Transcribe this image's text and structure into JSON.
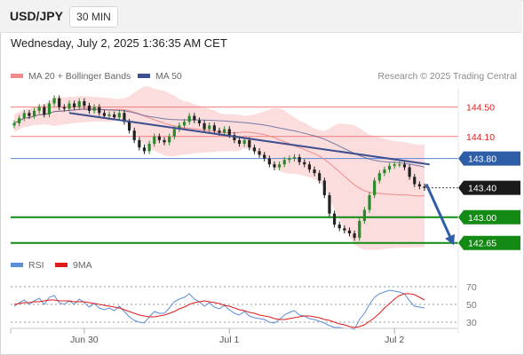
{
  "header": {
    "symbol": "USD/JPY",
    "interval": "30 MIN"
  },
  "timestamp": "Wednesday, July 2, 2025 1:36:35 AM CET",
  "legend": {
    "ma20": {
      "label": "MA 20 + Bollinger Bands",
      "color": "#f08b8b"
    },
    "ma50": {
      "label": "MA 50",
      "color": "#3c4f8f"
    }
  },
  "credit": "Research © 2025 Trading Central",
  "rsi_legend": {
    "rsi": {
      "label": "RSI",
      "color": "#5b8ed6"
    },
    "ma": {
      "label": "9MA",
      "color": "#e01b1b"
    }
  },
  "chart_data": [
    {
      "type": "candlestick",
      "name": "price",
      "ylim": [
        142.55,
        144.75
      ],
      "x_ticks": [
        "Jun 30",
        "Jul 1",
        "Jul 2"
      ],
      "levels": [
        {
          "value": 144.5,
          "label": "144.50",
          "kind": "resistance"
        },
        {
          "value": 144.1,
          "label": "144.10",
          "kind": "resistance"
        },
        {
          "value": 143.8,
          "label": "143.80",
          "kind": "pivot"
        },
        {
          "value": 143.4,
          "label": "143.40",
          "kind": "last_price"
        },
        {
          "value": 143.0,
          "label": "143.00",
          "kind": "support"
        },
        {
          "value": 142.65,
          "label": "142.65",
          "kind": "support"
        }
      ],
      "colors": {
        "resistance": "#ef7c7c",
        "pivot": "#5a86d6",
        "support": "#138a13",
        "last_price": "#1e1e1e",
        "up": "#2a8a2a",
        "down": "#222222",
        "band": "#fbd2d2",
        "ma20": "#f08b8b",
        "ma50": "#3c4f8f",
        "trendline": "#3c4f8f",
        "arrow": "#2f5ea8"
      },
      "trendline": [
        [
          144.42,
          11
        ],
        [
          143.72,
          83
        ]
      ],
      "projection": [
        143.45,
        142.65
      ],
      "closes": [
        144.28,
        144.35,
        144.42,
        144.38,
        144.45,
        144.5,
        144.4,
        144.55,
        144.62,
        144.5,
        144.48,
        144.55,
        144.5,
        144.58,
        144.52,
        144.45,
        144.5,
        144.42,
        144.38,
        144.4,
        144.36,
        144.42,
        144.3,
        144.18,
        144.05,
        143.95,
        143.9,
        144.0,
        144.1,
        144.05,
        144.02,
        144.1,
        144.2,
        144.25,
        144.3,
        144.38,
        144.32,
        144.28,
        144.2,
        144.25,
        144.18,
        144.15,
        144.2,
        144.12,
        144.05,
        144.0,
        144.05,
        143.95,
        143.9,
        143.85,
        143.8,
        143.72,
        143.68,
        143.72,
        143.78,
        143.8,
        143.82,
        143.75,
        143.72,
        143.65,
        143.6,
        143.5,
        143.3,
        143.05,
        142.9,
        142.85,
        142.82,
        142.78,
        142.72,
        142.95,
        143.1,
        143.3,
        143.5,
        143.6,
        143.65,
        143.7,
        143.72,
        143.72,
        143.68,
        143.55,
        143.45,
        143.42,
        143.4
      ],
      "rsi": {
        "ylim": [
          25,
          75
        ],
        "ticks": [
          70,
          50,
          30
        ],
        "rsi": [
          48,
          52,
          55,
          50,
          54,
          57,
          50,
          58,
          60,
          52,
          50,
          54,
          50,
          56,
          52,
          47,
          51,
          46,
          44,
          46,
          43,
          48,
          42,
          36,
          32,
          30,
          29,
          36,
          42,
          40,
          40,
          46,
          53,
          56,
          58,
          62,
          56,
          53,
          48,
          52,
          47,
          45,
          49,
          44,
          40,
          38,
          42,
          37,
          35,
          34,
          33,
          30,
          29,
          33,
          38,
          41,
          43,
          38,
          37,
          34,
          33,
          31,
          29,
          26,
          24,
          24,
          23,
          23,
          22,
          33,
          40,
          50,
          58,
          62,
          64,
          66,
          65,
          64,
          62,
          54,
          48,
          47,
          46
        ],
        "ma": [
          50,
          51,
          52,
          52,
          53,
          53,
          54,
          55,
          55,
          54,
          54,
          54,
          53,
          53,
          53,
          52,
          51,
          50,
          49,
          48,
          47,
          46,
          44,
          42,
          40,
          38,
          37,
          36,
          36,
          37,
          38,
          40,
          42,
          45,
          47,
          50,
          52,
          53,
          54,
          53,
          52,
          51,
          49,
          48,
          46,
          44,
          43,
          41,
          40,
          38,
          37,
          36,
          34,
          33,
          33,
          34,
          35,
          36,
          37,
          37,
          36,
          35,
          33,
          32,
          30,
          28,
          27,
          25,
          24,
          25,
          27,
          31,
          35,
          40,
          46,
          51,
          56,
          60,
          62,
          62,
          61,
          58,
          55
        ]
      }
    }
  ]
}
